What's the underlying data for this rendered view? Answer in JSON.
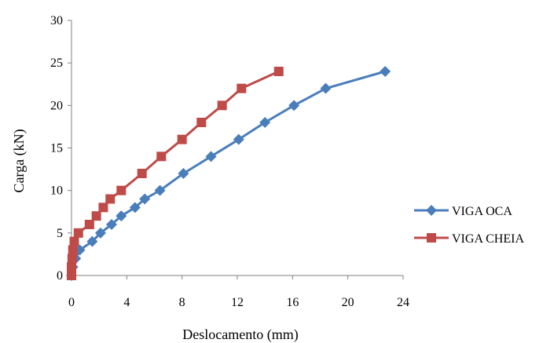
{
  "chart_data": {
    "type": "line",
    "title": "",
    "xlabel": "Deslocamento (mm)",
    "ylabel": "Carga (kN)",
    "xlim": [
      0,
      24
    ],
    "ylim": [
      0,
      30
    ],
    "xticks": [
      0,
      4,
      8,
      12,
      16,
      20,
      24
    ],
    "xtick_labels": [
      "0",
      "4",
      "8",
      "12",
      "16",
      "20",
      "24"
    ],
    "yticks": [
      0,
      5,
      10,
      15,
      20,
      25,
      30
    ],
    "ytick_labels": [
      "0",
      "5",
      "10",
      "15",
      "20",
      "25",
      "30"
    ],
    "grid": false,
    "legend_position": "right",
    "series": [
      {
        "name": "VIGA OCA",
        "color": "#4a7ebb",
        "marker": "diamond",
        "points": [
          [
            0,
            0
          ],
          [
            0.1,
            1
          ],
          [
            0.3,
            2
          ],
          [
            0.6,
            3
          ],
          [
            1.5,
            4
          ],
          [
            2.1,
            5
          ],
          [
            2.9,
            6
          ],
          [
            3.6,
            7
          ],
          [
            4.6,
            8
          ],
          [
            5.3,
            9
          ],
          [
            6.4,
            10
          ],
          [
            8.1,
            12
          ],
          [
            10.1,
            14
          ],
          [
            12.1,
            16
          ],
          [
            14.0,
            18
          ],
          [
            16.1,
            20
          ],
          [
            18.4,
            22
          ],
          [
            22.7,
            24
          ]
        ]
      },
      {
        "name": "VIGA CHEIA",
        "color": "#be4b48",
        "marker": "square",
        "points": [
          [
            0,
            0
          ],
          [
            0,
            1
          ],
          [
            0.05,
            2
          ],
          [
            0.1,
            3
          ],
          [
            0.2,
            4
          ],
          [
            0.5,
            5
          ],
          [
            1.3,
            6
          ],
          [
            1.8,
            7
          ],
          [
            2.3,
            8
          ],
          [
            2.8,
            9
          ],
          [
            3.6,
            10
          ],
          [
            5.1,
            12
          ],
          [
            6.5,
            14
          ],
          [
            8.0,
            16
          ],
          [
            9.4,
            18
          ],
          [
            10.9,
            20
          ],
          [
            12.3,
            22
          ],
          [
            15.0,
            24
          ]
        ]
      }
    ]
  }
}
